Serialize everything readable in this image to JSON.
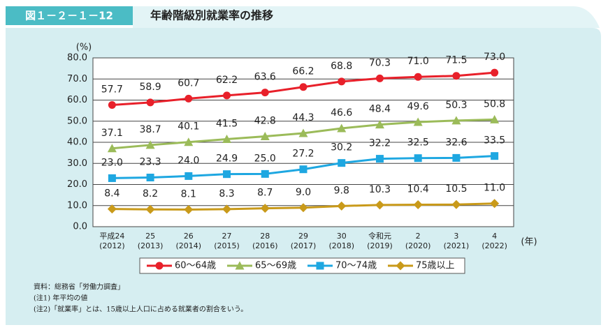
{
  "header": {
    "figure_number": "図１－２－１－12"
  },
  "chart_data": {
    "type": "line",
    "title": "年齢階級別就業率の推移",
    "y_unit": "(%)",
    "x_unit": "(年)",
    "categories": [
      "平成24",
      "25",
      "26",
      "27",
      "28",
      "29",
      "30",
      "令和元",
      "2",
      "3",
      "4"
    ],
    "category_years": [
      "(2012)",
      "(2013)",
      "(2014)",
      "(2015)",
      "(2016)",
      "(2017)",
      "(2018)",
      "(2019)",
      "(2020)",
      "(2021)",
      "(2022)"
    ],
    "ylim": [
      0,
      80
    ],
    "yticks": [
      {
        "value": 0,
        "label": "0.0"
      },
      {
        "value": 10,
        "label": "10.0"
      },
      {
        "value": 20,
        "label": "20.0"
      },
      {
        "value": 30,
        "label": "30.0"
      },
      {
        "value": 40,
        "label": "40.0"
      },
      {
        "value": 50,
        "label": "50.0"
      },
      {
        "value": 60,
        "label": "60.0"
      },
      {
        "value": 70,
        "label": "70.0"
      },
      {
        "value": 80,
        "label": "80.0"
      }
    ],
    "grid": true,
    "series": [
      {
        "name": "60～64歳",
        "color": "#e8202a",
        "marker": "circle",
        "values": [
          57.7,
          58.9,
          60.7,
          62.2,
          63.6,
          66.2,
          68.8,
          70.3,
          71.0,
          71.5,
          73.0
        ],
        "value_labels": [
          "57.7",
          "58.9",
          "60.7",
          "62.2",
          "63.6",
          "66.2",
          "68.8",
          "70.3",
          "71.0",
          "71.5",
          "73.0"
        ]
      },
      {
        "name": "65～69歳",
        "color": "#9bbb59",
        "marker": "triangle",
        "values": [
          37.1,
          38.7,
          40.1,
          41.5,
          42.8,
          44.3,
          46.6,
          48.4,
          49.6,
          50.3,
          50.8
        ],
        "value_labels": [
          "37.1",
          "38.7",
          "40.1",
          "41.5",
          "42.8",
          "44.3",
          "46.6",
          "48.4",
          "49.6",
          "50.3",
          "50.8"
        ]
      },
      {
        "name": "70～74歳",
        "color": "#1ea7e1",
        "marker": "square",
        "values": [
          23.0,
          23.3,
          24.0,
          24.9,
          25.0,
          27.2,
          30.2,
          32.2,
          32.5,
          32.6,
          33.5
        ],
        "value_labels": [
          "23.0",
          "23.3",
          "24.0",
          "24.9",
          "25.0",
          "27.2",
          "30.2",
          "32.2",
          "32.5",
          "32.6",
          "33.5"
        ]
      },
      {
        "name": "75歳以上",
        "color": "#c99a1a",
        "marker": "diamond",
        "values": [
          8.4,
          8.2,
          8.1,
          8.3,
          8.7,
          9.0,
          9.8,
          10.3,
          10.4,
          10.5,
          11.0
        ],
        "value_labels": [
          "8.4",
          "8.2",
          "8.1",
          "8.3",
          "8.7",
          "9.0",
          "9.8",
          "10.3",
          "10.4",
          "10.5",
          "11.0"
        ]
      }
    ]
  },
  "notes": [
    "資料：総務省「労働力調査」",
    "(注1) 年平均の値",
    "(注2)「就業率」とは、15歳以上人口に占める就業者の割合をいう。"
  ]
}
